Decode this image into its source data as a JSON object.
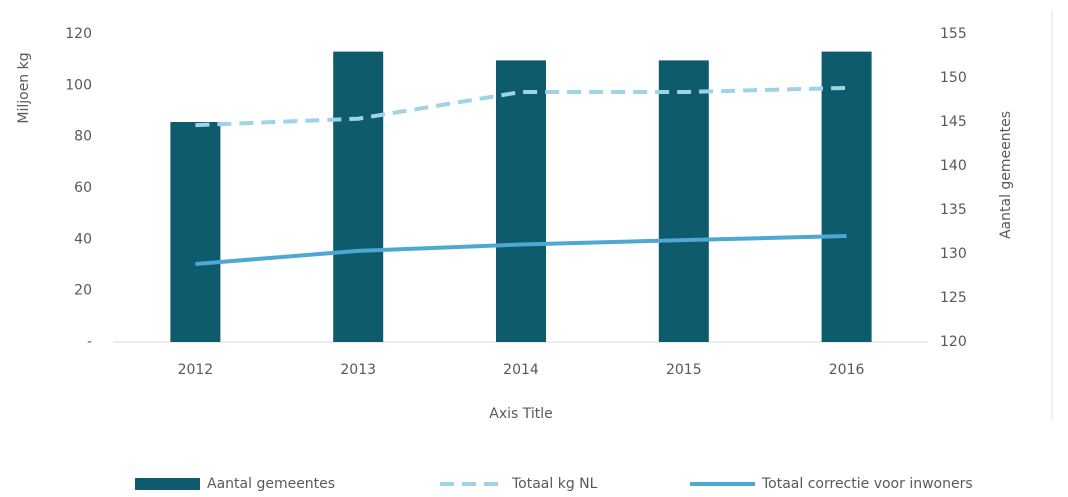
{
  "chart_data": {
    "type": "bar-line",
    "x_label": "Axis Title",
    "y_label": "Miljoen kg",
    "y2_label": "Aantal gemeentes",
    "categories": [
      "2012",
      "2013",
      "2014",
      "2015",
      "2016"
    ],
    "series": [
      {
        "name": "Aantal gemeentes",
        "type": "bar",
        "axis": "y2",
        "color": "#0e5b6e",
        "values": [
          145,
          153,
          152,
          152,
          153
        ]
      },
      {
        "name": "Totaal kg NL",
        "type": "line",
        "dashed": true,
        "color": "#9fd3e7",
        "values": [
          84.5,
          87,
          97.4,
          97.4,
          99
        ]
      },
      {
        "name": "Totaal correctie voor inwoners",
        "type": "line",
        "color": "#4ea8d2",
        "values": [
          30.4,
          35.5,
          38,
          39.7,
          41.3
        ]
      }
    ],
    "ylim": [
      0,
      120
    ],
    "yticks": [
      {
        "value": 0,
        "label": "-"
      },
      20,
      40,
      60,
      80,
      100,
      120
    ],
    "y2lim": [
      120,
      155
    ],
    "y2ticks": [
      120,
      125,
      130,
      135,
      140,
      145,
      150,
      155
    ],
    "grid": false,
    "legend": "bottom"
  }
}
